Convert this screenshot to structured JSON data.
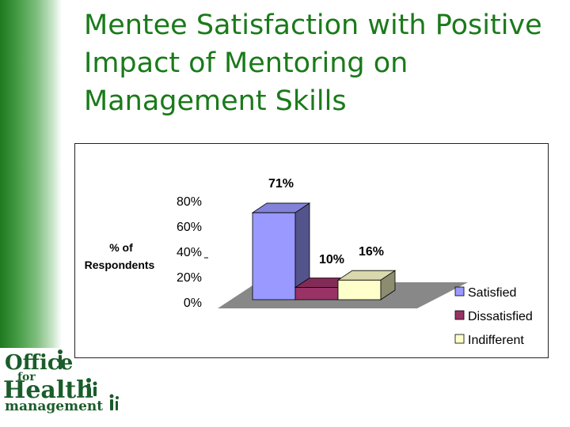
{
  "slide": {
    "title_lines": [
      "Mentee Satisfaction with Positive",
      "Impact of Mentoring on",
      "Management Skills"
    ]
  },
  "chart_data": {
    "type": "bar",
    "three_d": true,
    "title": "",
    "ylabel": "% of Respondents",
    "yticks": [
      "0%",
      "20%",
      "40%",
      "60%",
      "80%"
    ],
    "ylim": [
      0,
      80
    ],
    "categories": [
      "Satisfied",
      "Dissatisfied",
      "Indifferent"
    ],
    "values": [
      71,
      10,
      16
    ],
    "data_labels": [
      "71%",
      "10%",
      "16%"
    ],
    "colors": [
      "#9999ff",
      "#993366",
      "#ffffcc"
    ],
    "legend": {
      "placement": "bottom-right",
      "entries": [
        "Satisfied",
        "Dissatisfied",
        "Indifferent"
      ]
    },
    "floor_color": "#888888"
  },
  "logo": {
    "line1": "Office",
    "line2": "for",
    "line3": "Health",
    "line4": "management",
    "color": "#1a5c2a"
  }
}
